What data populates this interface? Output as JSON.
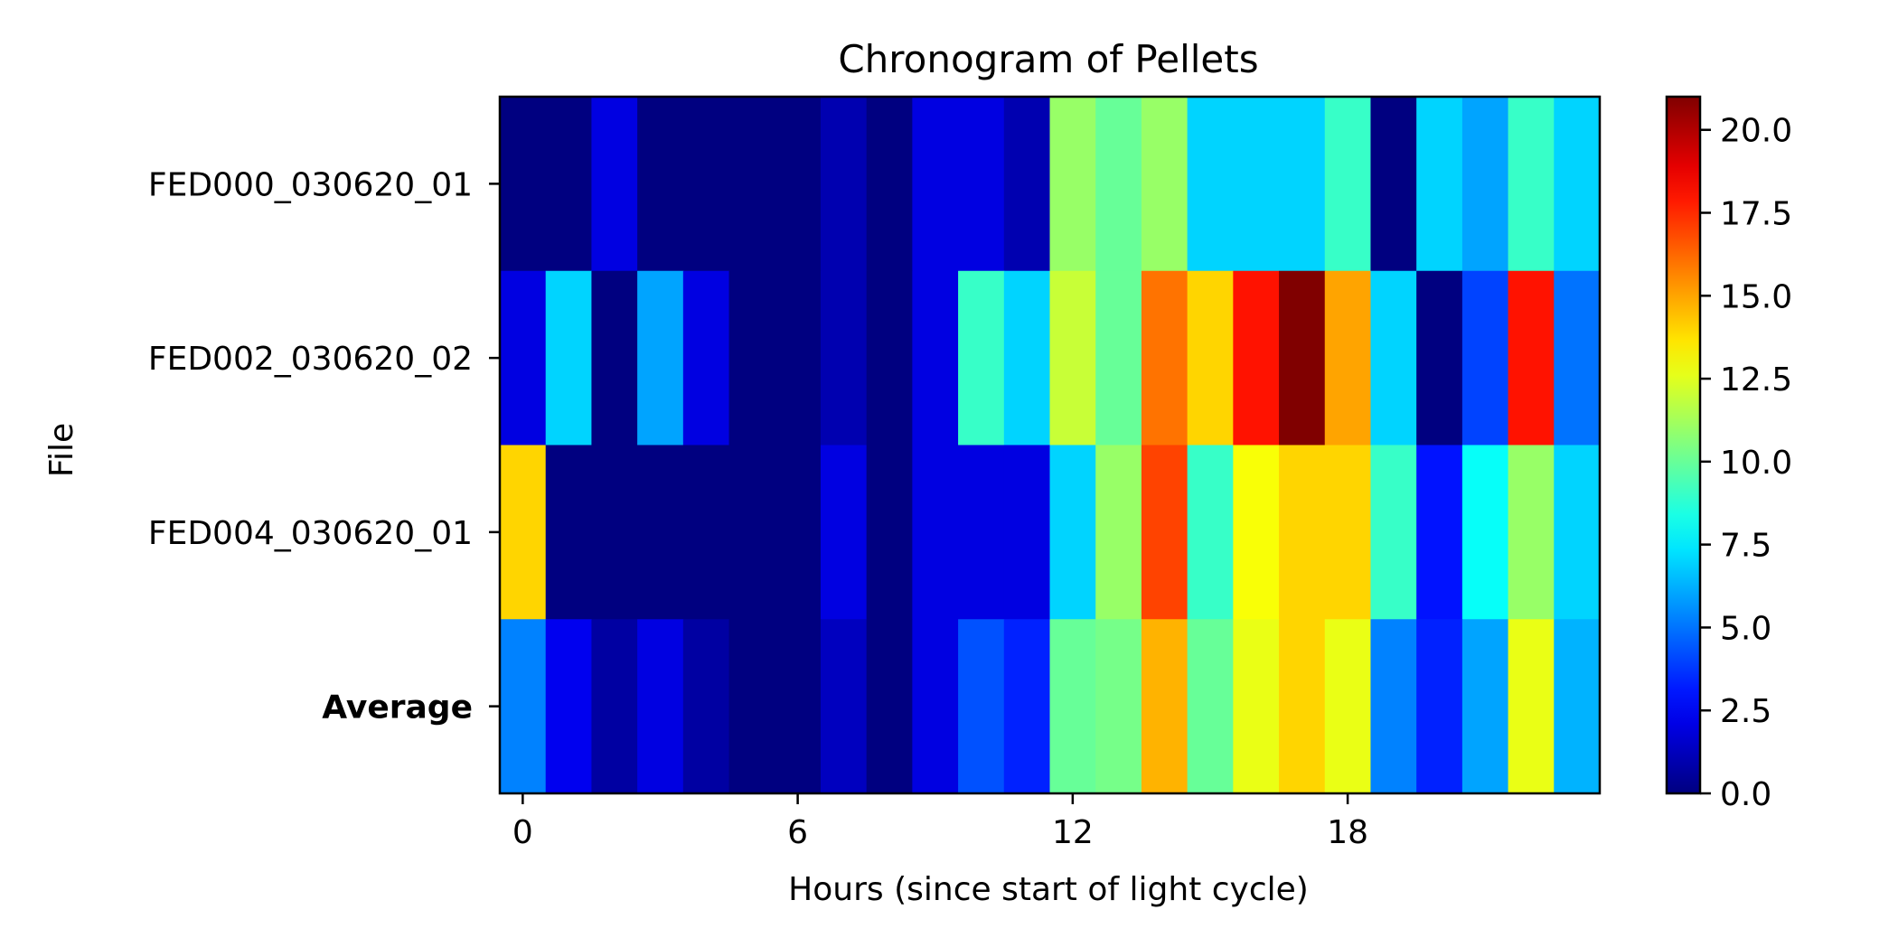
{
  "chart_data": {
    "type": "heatmap",
    "title": "Chronogram of Pellets",
    "xlabel": "Hours (since start of light cycle)",
    "ylabel": "File",
    "x_hours": [
      0,
      1,
      2,
      3,
      4,
      5,
      6,
      7,
      8,
      9,
      10,
      11,
      12,
      13,
      14,
      15,
      16,
      17,
      18,
      19,
      20,
      21,
      22,
      23
    ],
    "x_ticks": [
      0,
      6,
      12,
      18
    ],
    "x_tick_labels": [
      "0",
      "6",
      "12",
      "18"
    ],
    "rows": [
      {
        "label": "FED000_030620_01",
        "bold": false,
        "values": [
          0,
          0,
          2,
          0,
          0,
          0,
          0,
          1,
          0,
          2,
          2,
          1,
          11,
          10,
          11,
          7,
          7,
          7,
          9,
          0,
          7,
          6,
          9,
          7
        ]
      },
      {
        "label": "FED002_030620_02",
        "bold": false,
        "values": [
          2,
          7,
          0,
          6,
          2,
          0,
          0,
          1,
          0,
          2,
          9,
          7,
          12,
          10,
          16,
          14,
          18,
          21,
          15,
          7,
          0,
          4,
          18,
          5
        ]
      },
      {
        "label": "FED004_030620_01",
        "bold": false,
        "values": [
          14,
          0,
          0,
          0,
          0,
          0,
          0,
          2,
          0,
          2,
          2,
          2,
          7,
          11,
          17,
          9,
          13,
          14,
          14,
          9,
          3,
          8,
          11,
          7
        ]
      },
      {
        "label": "Average",
        "bold": true,
        "values": [
          5.3,
          2.3,
          0.7,
          2,
          0.7,
          0,
          0,
          1.3,
          0,
          2,
          4.3,
          3.3,
          10,
          10.3,
          14.7,
          10,
          12.7,
          14,
          12.7,
          5.3,
          3.3,
          6,
          12.7,
          6.3
        ]
      }
    ],
    "colormap": "jet",
    "color_range": [
      0,
      21
    ],
    "colorbar_ticks": [
      0,
      2.5,
      5,
      7.5,
      10,
      12.5,
      15,
      17.5,
      20
    ],
    "colorbar_tick_labels": [
      "0.0",
      "2.5",
      "5.0",
      "7.5",
      "10.0",
      "12.5",
      "15.0",
      "17.5",
      "20.0"
    ]
  }
}
